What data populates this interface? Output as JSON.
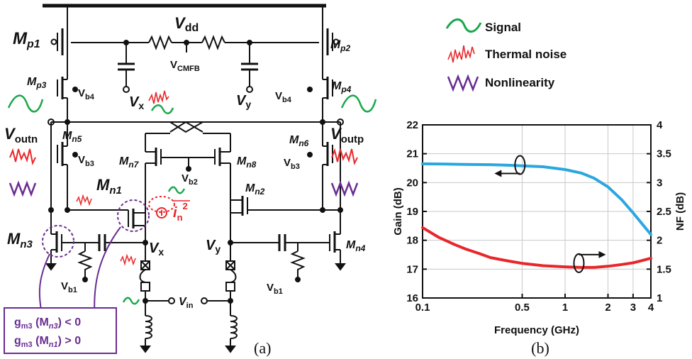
{
  "circuit": {
    "vdd": {
      "main": "V",
      "sub": "dd"
    },
    "vcmfb": {
      "main": "V",
      "sub": "CMFB"
    },
    "vx_top": {
      "main": "V",
      "sub": "x"
    },
    "vy_top": {
      "main": "V",
      "sub": "y"
    },
    "vx_bot": {
      "main": "V",
      "sub": "x"
    },
    "vy_bot": {
      "main": "V",
      "sub": "y"
    },
    "voutn": {
      "main": "V",
      "sub": "outn"
    },
    "voutp": {
      "main": "V",
      "sub": "outp"
    },
    "vin": {
      "main": "V",
      "sub": "in"
    },
    "vb1_left": {
      "main": "V",
      "sub": "b1"
    },
    "vb1_right": {
      "main": "V",
      "sub": "b1"
    },
    "vb2": {
      "main": "V",
      "sub": "b2"
    },
    "vb3_left": {
      "main": "V",
      "sub": "b3"
    },
    "vb3_right": {
      "main": "V",
      "sub": "b3"
    },
    "vb4_left": {
      "main": "V",
      "sub": "b4"
    },
    "vb4_right": {
      "main": "V",
      "sub": "b4"
    },
    "mp1": {
      "main": "M",
      "sub": "p1"
    },
    "mp2": {
      "main": "M",
      "sub": "p2"
    },
    "mp3": {
      "main": "M",
      "sub": "p3"
    },
    "mp4": {
      "main": "M",
      "sub": "p4"
    },
    "mn1": {
      "main": "M",
      "sub": "n1"
    },
    "mn2": {
      "main": "M",
      "sub": "n2"
    },
    "mn3": {
      "main": "M",
      "sub": "n3"
    },
    "mn4": {
      "main": "M",
      "sub": "n4"
    },
    "mn5": {
      "main": "M",
      "sub": "n5"
    },
    "mn6": {
      "main": "M",
      "sub": "n6"
    },
    "mn7": {
      "main": "M",
      "sub": "n7"
    },
    "mn8": {
      "main": "M",
      "sub": "n8"
    },
    "noise_current": {
      "main": "i",
      "sub": "n",
      "sup": "2"
    },
    "gm3_box": {
      "line1": {
        "pre": "g",
        "sub1": "m3",
        "mid": " (M",
        "sub2": "n3",
        "post": ") < 0"
      },
      "line2": {
        "pre": "g",
        "sub1": "m3",
        "mid": " (M",
        "sub2": "n1",
        "post": ") > 0"
      }
    },
    "caption": "(a)"
  },
  "legend": {
    "signal": "Signal",
    "thermal_noise": "Thermal noise",
    "nonlinearity": "Nonlinearity"
  },
  "colors": {
    "signal": "#1aa84b",
    "noise": "#e8272b",
    "nonlinearity": "#6a2c91",
    "gain_curve": "#2ba7df",
    "nf_curve": "#e8272b"
  },
  "chart_data": {
    "type": "line",
    "x_scale": "log",
    "xlabel": "Frequency (GHz)",
    "ylabel": "Gain (dB)",
    "y2label": "NF (dB)",
    "xlim": [
      0.1,
      4
    ],
    "ylim": [
      16,
      22
    ],
    "y2lim": [
      1,
      4
    ],
    "x_ticks": [
      0.1,
      0.5,
      1,
      2,
      3,
      4
    ],
    "x_tick_labels": [
      "0.1",
      "0.5",
      "1",
      "2",
      "3",
      "4"
    ],
    "y_ticks": [
      16,
      17,
      18,
      19,
      20,
      21,
      22
    ],
    "y_tick_labels": [
      "16",
      "17",
      "18",
      "19",
      "20",
      "21",
      "22"
    ],
    "y2_ticks": [
      1,
      1.5,
      2,
      2.5,
      3,
      3.5,
      4
    ],
    "y2_tick_labels": [
      "1",
      "1.5",
      "2",
      "2.5",
      "3",
      "3.5",
      "4"
    ],
    "grid": true,
    "caption": "(b)",
    "series": [
      {
        "name": "Gain",
        "axis": "left",
        "color": "#2ba7df",
        "x": [
          0.1,
          0.15,
          0.2,
          0.3,
          0.4,
          0.5,
          0.7,
          1.0,
          1.3,
          1.6,
          2.0,
          2.5,
          3.0,
          3.5,
          4.0
        ],
        "y": [
          20.65,
          20.64,
          20.63,
          20.62,
          20.6,
          20.58,
          20.55,
          20.45,
          20.33,
          20.15,
          19.85,
          19.4,
          18.95,
          18.55,
          18.2
        ]
      },
      {
        "name": "NF",
        "axis": "right",
        "color": "#e8272b",
        "x": [
          0.1,
          0.13,
          0.17,
          0.2,
          0.25,
          0.3,
          0.4,
          0.5,
          0.7,
          1.0,
          1.3,
          1.6,
          2.0,
          2.5,
          3.0,
          3.5,
          4.0
        ],
        "y": [
          2.22,
          2.05,
          1.92,
          1.85,
          1.77,
          1.7,
          1.64,
          1.6,
          1.56,
          1.54,
          1.53,
          1.53,
          1.55,
          1.58,
          1.61,
          1.65,
          1.69
        ]
      }
    ]
  }
}
